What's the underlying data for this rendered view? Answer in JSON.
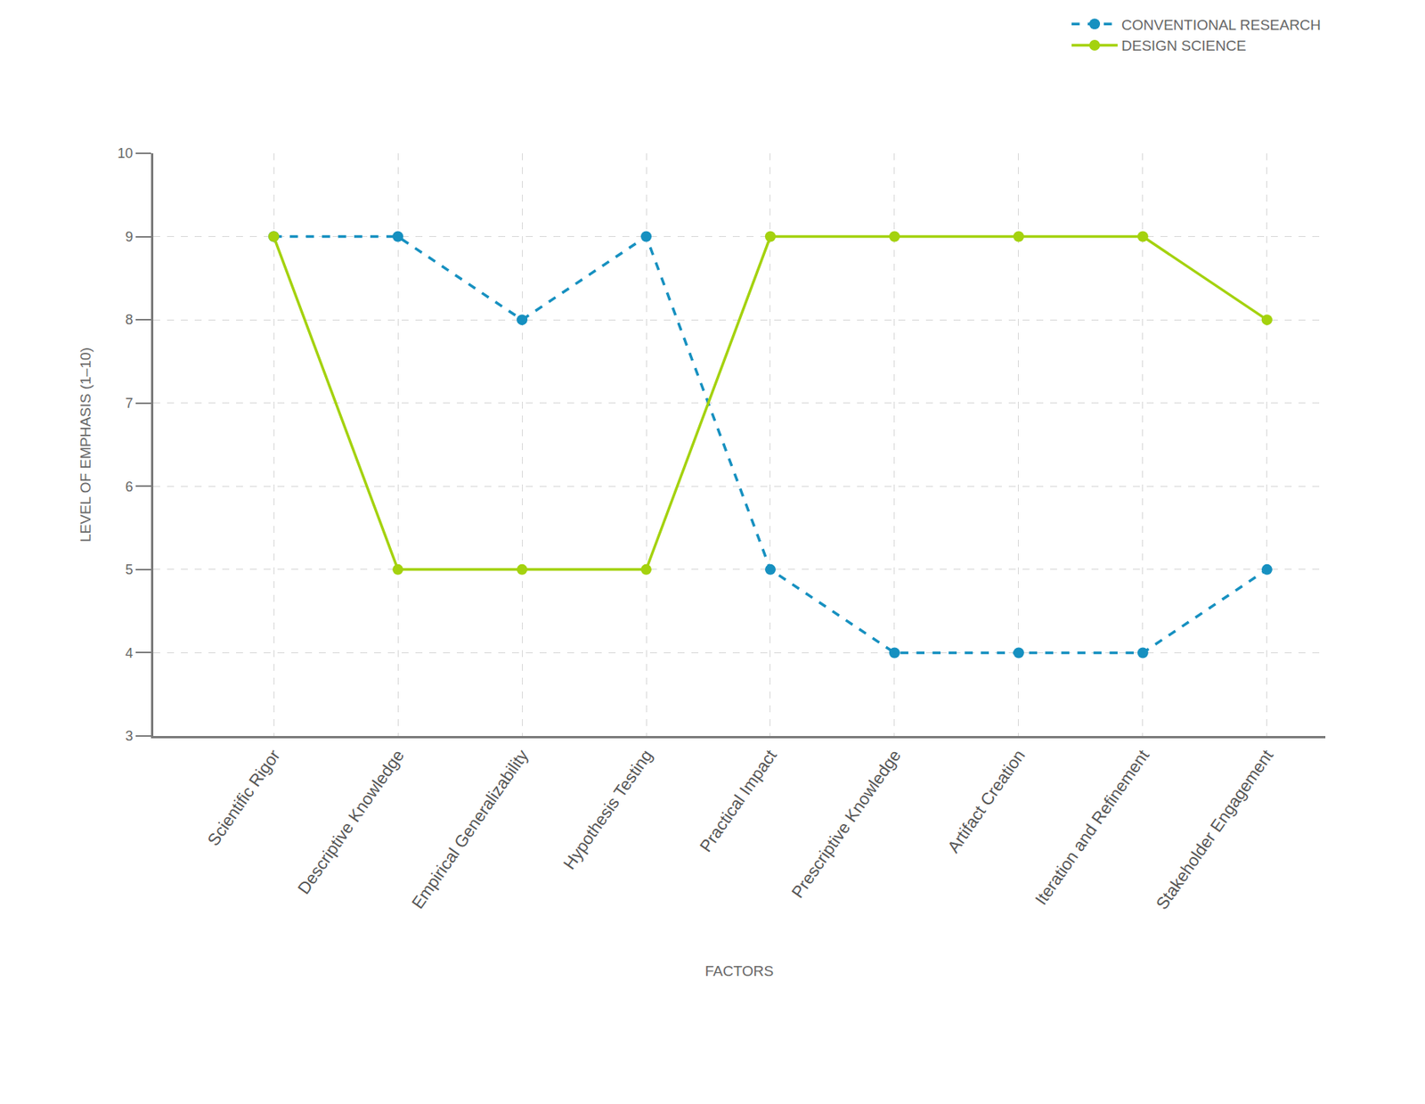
{
  "chart_data": {
    "type": "line",
    "x_label": "FACTORS",
    "y_label": "LEVEL OF EMPHASIS (1–10)",
    "categories": [
      "Scientific Rigor",
      "Descriptive Knowledge",
      "Empirical Generalizability",
      "Hypothesis Testing",
      "Practical Impact",
      "Prescriptive Knowledge",
      "Artifact Creation",
      "Iteration and Refinement",
      "Stakeholder Engagement"
    ],
    "series": [
      {
        "name": "CONVENTIONAL RESEARCH",
        "color": "#1690c0",
        "line_style": "dashed",
        "marker": "circle",
        "values": [
          9,
          9,
          8,
          9,
          5,
          4,
          4,
          4,
          5
        ]
      },
      {
        "name": "DESIGN SCIENCE",
        "color": "#a4d20e",
        "line_style": "solid",
        "marker": "circle",
        "values": [
          9,
          5,
          5,
          5,
          9,
          9,
          9,
          9,
          8
        ]
      }
    ],
    "ylim": [
      3,
      10
    ],
    "yticks": [
      3,
      4,
      5,
      6,
      7,
      8,
      9,
      10
    ],
    "grid": true,
    "legend": "top right"
  }
}
